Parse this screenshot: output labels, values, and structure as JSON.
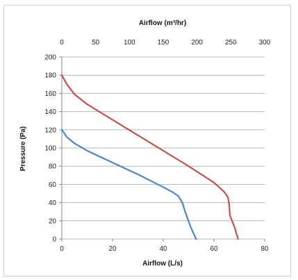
{
  "chart_data": {
    "type": "line",
    "xlabel": "Airflow (L/s)",
    "x2label": "Airflow (m³/hr)",
    "ylabel": "Pressure (Pa)",
    "xlim": [
      0,
      80
    ],
    "x2lim": [
      0,
      300
    ],
    "ylim": [
      0,
      200
    ],
    "x_ticks": [
      0,
      20,
      40,
      60,
      80
    ],
    "x2_ticks": [
      0,
      50,
      100,
      150,
      200,
      250,
      300
    ],
    "y_ticks": [
      0,
      20,
      40,
      60,
      80,
      100,
      120,
      140,
      160,
      180,
      200
    ],
    "grid": "horizontal",
    "colors": {
      "blue": "#4a86c5",
      "red": "#c0504d"
    },
    "series": [
      {
        "color": "#4a86c5",
        "x": [
          0,
          2,
          5,
          10,
          20,
          30,
          40,
          44,
          46,
          47.5,
          49,
          51,
          53
        ],
        "y": [
          120,
          112,
          105,
          97,
          84,
          71,
          57,
          51,
          47,
          40,
          27,
          12,
          0
        ]
      },
      {
        "color": "#c0504d",
        "x": [
          0,
          2,
          5,
          10,
          20,
          30,
          40,
          50,
          60,
          64,
          65.5,
          66,
          66.3,
          68,
          69.5
        ],
        "y": [
          180,
          170,
          159,
          148,
          131,
          114,
          97,
          80,
          62,
          52,
          46,
          38,
          26,
          14,
          0
        ]
      }
    ]
  }
}
